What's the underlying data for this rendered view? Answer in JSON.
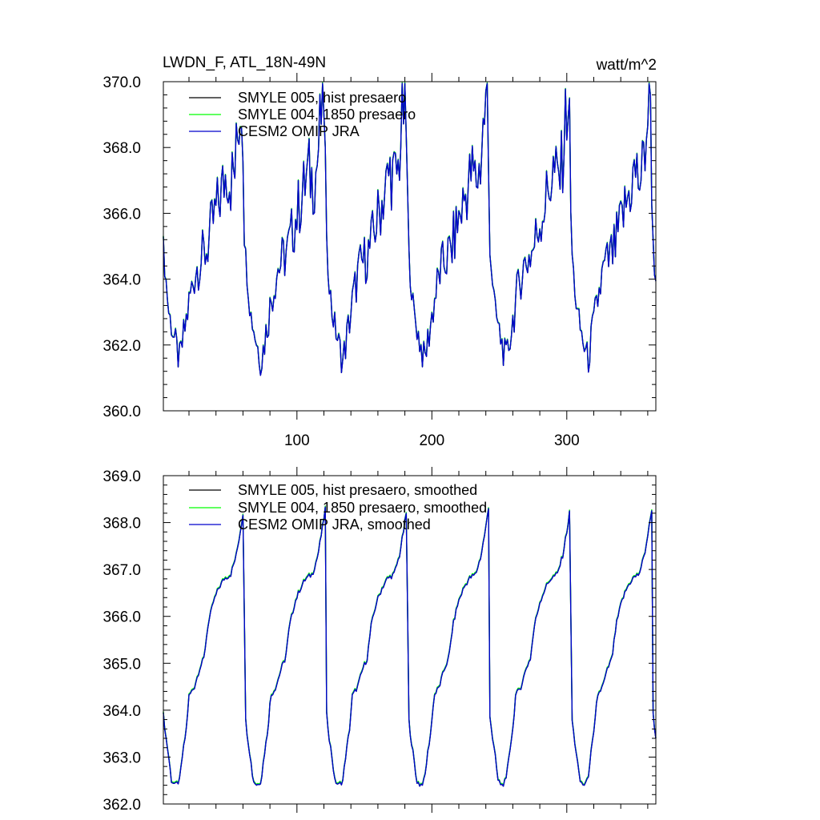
{
  "chart_data": [
    {
      "type": "line",
      "title_left": "LWDN_F, ATL_18N-49N",
      "title_right": "watt/m^2",
      "xlim": [
        1,
        366
      ],
      "ylim": [
        360.0,
        370.0
      ],
      "xticks": [
        100,
        200,
        300
      ],
      "xtick_labels": [
        "100",
        "200",
        "300"
      ],
      "yticks": [
        360.0,
        362.0,
        364.0,
        366.0,
        368.0,
        370.0
      ],
      "ytick_labels": [
        "360.0",
        "362.0",
        "364.0",
        "366.0",
        "368.0",
        "370.0"
      ],
      "legend_position": "top-left",
      "shape": {
        "period": 60.5,
        "start": 1,
        "noisy": true
      },
      "keyframes": [
        [
          0,
          365.0
        ],
        [
          1,
          364.4
        ],
        [
          4,
          363.0
        ],
        [
          8,
          362.2
        ],
        [
          12,
          361.5
        ],
        [
          16,
          362.5
        ],
        [
          20,
          363.5
        ],
        [
          24,
          364.3
        ],
        [
          28,
          364.6
        ],
        [
          32,
          364.9
        ],
        [
          36,
          365.6
        ],
        [
          40,
          366.2
        ],
        [
          44,
          366.8
        ],
        [
          47,
          367.3
        ],
        [
          50,
          367.0
        ],
        [
          53,
          367.3
        ],
        [
          56,
          368.8
        ],
        [
          58.5,
          369.6
        ],
        [
          60.5,
          365.0
        ]
      ],
      "series": [
        {
          "name": "SMYLE 005, hist presaero",
          "color": "#000000",
          "offset": 0.0
        },
        {
          "name": "SMYLE 004, 1850 presaero",
          "color": "#00ff00",
          "offset": 0.02
        },
        {
          "name": "CESM2 OMIP JRA",
          "color": "#0000cc",
          "offset": 0.0
        }
      ]
    },
    {
      "type": "line",
      "xlim": [
        1,
        366
      ],
      "ylim": [
        362.0,
        369.0
      ],
      "xticks": [
        100,
        200,
        300
      ],
      "xtick_labels": [
        "",
        "",
        ""
      ],
      "yticks": [
        362.0,
        363.0,
        364.0,
        365.0,
        366.0,
        367.0,
        368.0,
        369.0
      ],
      "ytick_labels": [
        "362.0",
        "363.0",
        "364.0",
        "365.0",
        "366.0",
        "367.0",
        "368.0",
        "369.0"
      ],
      "legend_position": "top-left",
      "shape": {
        "period": 60.5,
        "start": 1,
        "noisy": false
      },
      "keyframes": [
        [
          0,
          363.9
        ],
        [
          2,
          363.4
        ],
        [
          4,
          363.0
        ],
        [
          6,
          362.5
        ],
        [
          9,
          362.4
        ],
        [
          12,
          362.5
        ],
        [
          14,
          363.0
        ],
        [
          17,
          363.6
        ],
        [
          19,
          364.3
        ],
        [
          23,
          364.5
        ],
        [
          27,
          364.9
        ],
        [
          30,
          365.1
        ],
        [
          33,
          365.8
        ],
        [
          37,
          366.3
        ],
        [
          41,
          366.6
        ],
        [
          45,
          366.8
        ],
        [
          50,
          366.9
        ],
        [
          54,
          367.3
        ],
        [
          57.5,
          367.9
        ],
        [
          59.5,
          368.3
        ],
        [
          60.5,
          363.9
        ]
      ],
      "series": [
        {
          "name": "SMYLE 005, hist presaero, smoothed",
          "color": "#000000",
          "offset": 0.0
        },
        {
          "name": "SMYLE 004, 1850 presaero, smoothed",
          "color": "#00ff00",
          "offset": 0.02
        },
        {
          "name": "CESM2 OMIP JRA, smoothed",
          "color": "#0000cc",
          "offset": 0.0
        }
      ]
    }
  ]
}
